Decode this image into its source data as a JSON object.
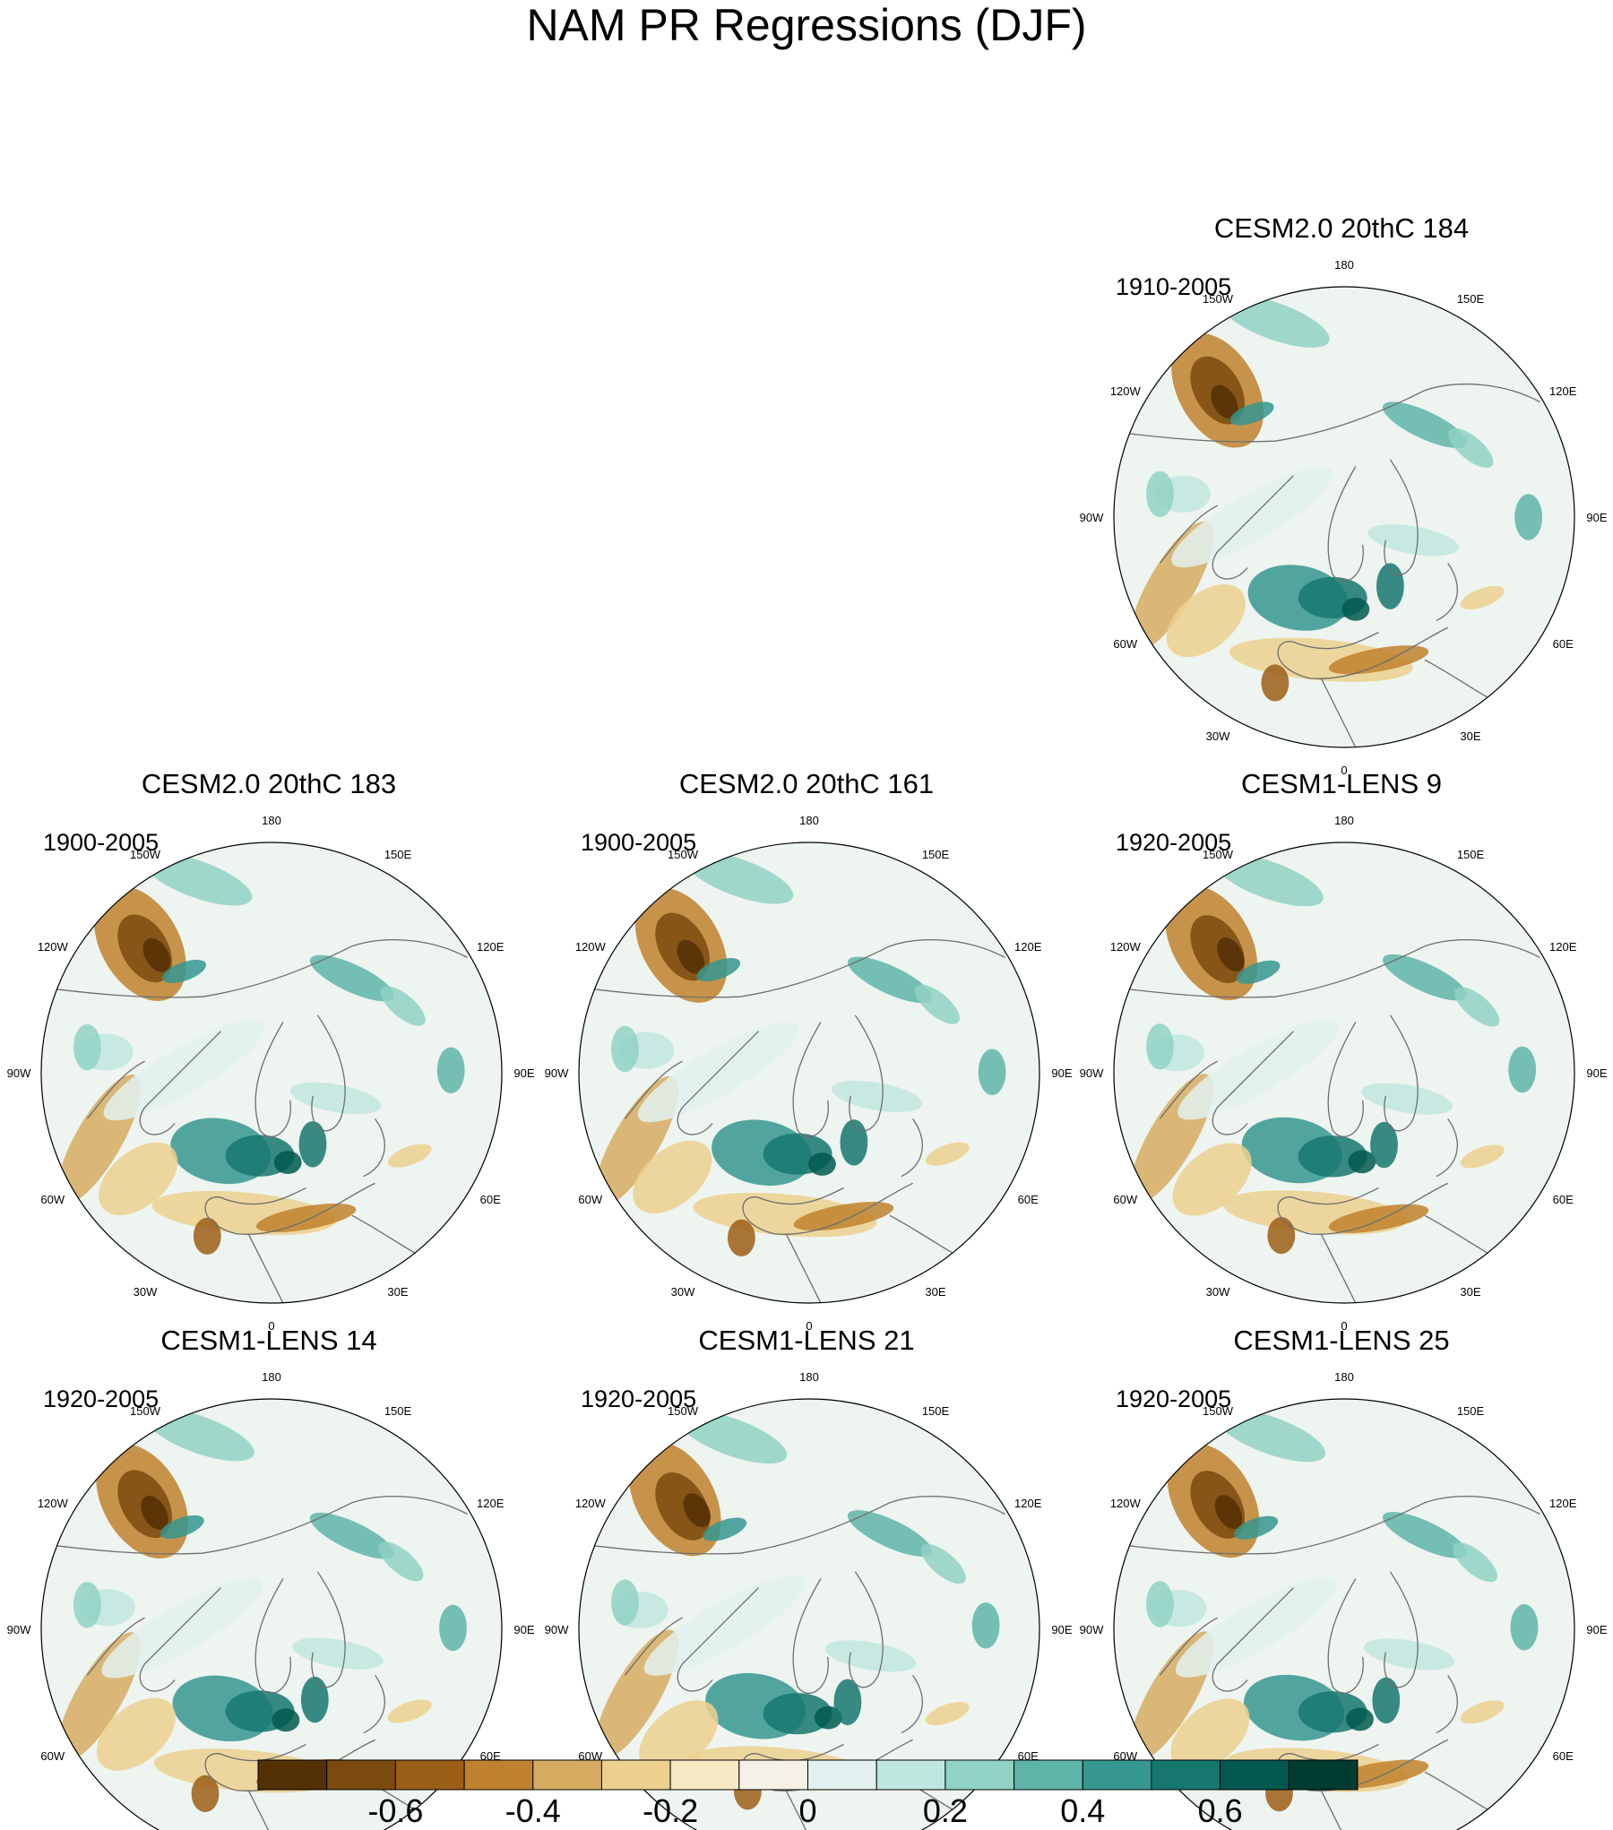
{
  "figure": {
    "title": "NAM PR Regressions (DJF)"
  },
  "longitude_labels": [
    "180",
    "150E",
    "120E",
    "90E",
    "60E",
    "30E",
    "0",
    "30W",
    "60W",
    "90W",
    "120W",
    "150W"
  ],
  "panels": [
    {
      "id": "p184",
      "title": "CESM2.0 20thC 184",
      "period": "1910-2005",
      "empty": false
    },
    {
      "id": "p183",
      "title": "CESM2.0 20thC 183",
      "period": "1900-2005",
      "empty": false
    },
    {
      "id": "p161",
      "title": "CESM2.0 20thC 161",
      "period": "1900-2005",
      "empty": false
    },
    {
      "id": "l9",
      "title": "CESM1-LENS 9",
      "period": "1920-2005",
      "empty": false
    },
    {
      "id": "l14",
      "title": "CESM1-LENS 14",
      "period": "1920-2005",
      "empty": false
    },
    {
      "id": "l21",
      "title": "CESM1-LENS 21",
      "period": "1920-2005",
      "empty": false
    },
    {
      "id": "l25",
      "title": "CESM1-LENS 25",
      "period": "1920-2005",
      "empty": false
    }
  ],
  "colorbar": {
    "colors": [
      "#543005",
      "#7a4a0e",
      "#9b5e16",
      "#bf812d",
      "#d6ab61",
      "#ecd08f",
      "#f6e8c3",
      "#f5f1e6",
      "#e2f1ef",
      "#bfe6df",
      "#90d2c4",
      "#5fb4a8",
      "#35978f",
      "#16776f",
      "#01594f",
      "#003c30"
    ],
    "tick_labels": [
      "-0.6",
      "-0.4",
      "-0.2",
      "0",
      "0.2",
      "0.4",
      "0.6"
    ]
  },
  "colors": {
    "coastline": "#6e6e6e",
    "map_background": "#eef4f0"
  }
}
